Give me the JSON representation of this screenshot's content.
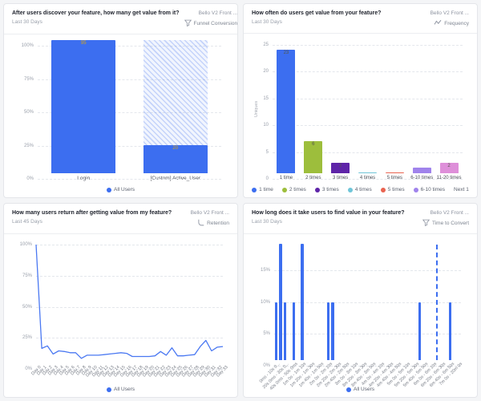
{
  "accent": "#3c6ef0",
  "page_bg": "#f4f5f7",
  "panels": [
    {
      "title": "After users discover your feature, how many get value from it?",
      "subtitle": "Last 30 Days",
      "source": "Bello V2 Front ...",
      "chart_type_label": "Funnel Conversion"
    },
    {
      "title": "How often do users get value from your feature?",
      "subtitle": "Last 30 Days",
      "source": "Bello V2 Front ...",
      "chart_type_label": "Frequency"
    },
    {
      "title": "How many users return after getting value from my feature?",
      "subtitle": "Last 45 Days",
      "source": "Bello V2 Front ...",
      "chart_type_label": "Retention"
    },
    {
      "title": "How long does it take users to find value in your feature?",
      "subtitle": "Last 30 Days",
      "source": "Bello V2 Front ...",
      "chart_type_label": "Time to Convert"
    }
  ],
  "chart_data": [
    {
      "type": "bar",
      "subtype": "funnel-conversion",
      "title": "After users discover your feature, how many get value from it?",
      "categories": [
        "Login",
        "[Custom] Active_User"
      ],
      "values_pct": [
        100,
        21
      ],
      "bar_labels": [
        "95",
        "20"
      ],
      "hatched": [
        false,
        true
      ],
      "hatched_background_to_pct": 100,
      "ylim": [
        0,
        100
      ],
      "yticks": [
        {
          "t": "100%",
          "v": 100
        },
        {
          "t": "75%",
          "v": 75
        },
        {
          "t": "50%",
          "v": 50
        },
        {
          "t": "25%",
          "v": 25
        },
        {
          "t": "0%",
          "v": 0
        }
      ],
      "bar_color": "#3c6ef0",
      "bar_label_color": "#d9a514",
      "legend": [
        {
          "label": "All Users",
          "color": "#3c6ef0"
        }
      ]
    },
    {
      "type": "bar",
      "subtype": "frequency-histogram",
      "title": "How often do users get value from your feature?",
      "categories": [
        "1 time",
        "2 times",
        "3 times",
        "4 times",
        "5 times",
        "6-10 times",
        "11-20 times"
      ],
      "values": [
        23,
        6,
        2,
        0.2,
        0.2,
        1,
        2
      ],
      "bar_labels": [
        "23",
        "6",
        "2",
        "",
        "",
        "",
        "2"
      ],
      "colors": [
        "#3c6ef0",
        "#9dbe3c",
        "#5e24a8",
        "#6fc5d8",
        "#e96350",
        "#a083ec",
        "#de8fd9"
      ],
      "ylabel": "Uniques",
      "ylim": [
        0,
        25
      ],
      "yticks": [
        {
          "t": "25",
          "v": 25
        },
        {
          "t": "20",
          "v": 20
        },
        {
          "t": "15",
          "v": 15
        },
        {
          "t": "10",
          "v": 10
        },
        {
          "t": "5",
          "v": 5
        },
        {
          "t": "0",
          "v": 0
        }
      ],
      "bar_label_color": "#55584c",
      "legend": [
        {
          "label": "1 time",
          "color": "#3c6ef0"
        },
        {
          "label": "2 times",
          "color": "#9dbe3c"
        },
        {
          "label": "3 times",
          "color": "#5e24a8"
        },
        {
          "label": "4 times",
          "color": "#6fc5d8"
        },
        {
          "label": "5 times",
          "color": "#e96350"
        },
        {
          "label": "6-10 times",
          "color": "#a083ec"
        }
      ],
      "legend_more": "Next 1"
    },
    {
      "type": "line",
      "subtype": "retention-curve",
      "title": "How many users return after getting value from my feature?",
      "x": [
        "Day 0",
        "Day 1",
        "Day 2",
        "Day 3",
        "Day 4",
        "Day 5",
        "Day 6",
        "Day 7",
        "Day 8",
        "Day 9",
        "Day 10",
        "Day 11",
        "Day 12",
        "Day 13",
        "Day 14",
        "Day 15",
        "Day 16",
        "Day 17",
        "Day 18",
        "Day 19",
        "Day 20",
        "Day 21",
        "Day 22",
        "Day 23",
        "Day 24",
        "Day 25",
        "Day 26",
        "Day 27",
        "Day 28",
        "Day 29",
        "Day 30",
        "Day 31",
        "Day 32",
        "Day 33"
      ],
      "values": [
        100,
        16.5,
        18.5,
        12,
        14.5,
        14,
        13,
        13,
        8.5,
        11,
        11,
        11,
        11.5,
        12,
        12.5,
        13,
        12.5,
        10,
        10,
        10,
        10,
        10.5,
        14,
        11,
        17,
        10.5,
        10.5,
        11,
        11.5,
        18,
        23,
        14.5,
        17.5,
        18
      ],
      "line_color": "#4a78f2",
      "ylim": [
        0,
        100
      ],
      "yticks": [
        {
          "t": "100%",
          "v": 100
        },
        {
          "t": "75%",
          "v": 75
        },
        {
          "t": "50%",
          "v": 50
        },
        {
          "t": "25%",
          "v": 25
        },
        {
          "t": "0%",
          "v": 0
        }
      ],
      "legend": [
        {
          "label": "All Users",
          "color": "#3c6ef0"
        }
      ]
    },
    {
      "type": "bar",
      "subtype": "time-to-convert-histogram",
      "title": "How long does it take users to find value in your feature?",
      "n_slots": 43,
      "bars": [
        {
          "slot": 0,
          "pct": 9.1
        },
        {
          "slot": 1,
          "pct": 18.2
        },
        {
          "slot": 2,
          "pct": 9.1
        },
        {
          "slot": 4,
          "pct": 9.1
        },
        {
          "slot": 6,
          "pct": 18.2
        },
        {
          "slot": 12,
          "pct": 9.1
        },
        {
          "slot": 13,
          "pct": 9.1
        },
        {
          "slot": 33,
          "pct": 9.1
        },
        {
          "slot": 40,
          "pct": 9.1
        }
      ],
      "avg_marker_slot": 37,
      "tick_every_n_slots": 2,
      "tick_labels": [
        "0ms - 10s 0...",
        "20s 0ms - 30s 0...",
        "40s 0ms - 50s 0ms",
        "1m 0s - 1m 10s",
        "1m 20s - 1m 30s",
        "1m 40s - 1m 50s",
        "2m 0s - 2m 10s",
        "2m 20s - 2m 30s",
        "2m 40s - 2m 50s",
        "3m 0s - 3m 10s",
        "3m 20s - 3m 30s",
        "3m 40s - 3m 50s",
        "4m 0s - 4m 10s",
        "4m 20s - 4m 30s",
        "4m 40s - 4m 50s",
        "5m 0s - 5m 10s",
        "5m 20s - 5m 30s",
        "5m 40s - 5m 50s",
        "6m 0s - 6m 10s",
        "6m 20s - 6m 30s",
        "6m 40s - 6m 50s",
        "7m 0s - 20m 0s"
      ],
      "bar_color": "#3c6ef0",
      "ylim": [
        0,
        19
      ],
      "yticks": [
        {
          "t": "15%",
          "v": 15
        },
        {
          "t": "10%",
          "v": 10
        },
        {
          "t": "5%",
          "v": 5
        },
        {
          "t": "0%",
          "v": 0
        }
      ],
      "legend": [
        {
          "label": "All Users",
          "color": "#3c6ef0"
        }
      ]
    }
  ]
}
